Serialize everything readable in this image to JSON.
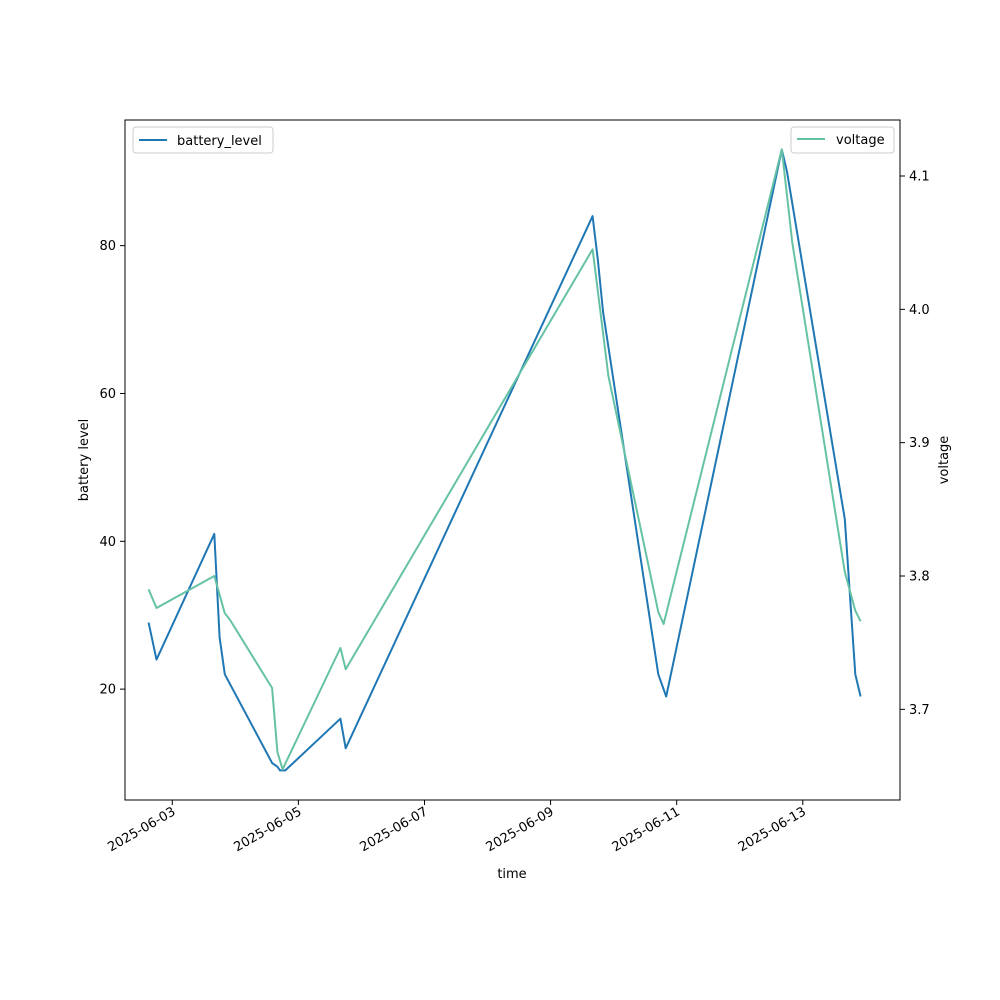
{
  "chart_data": {
    "type": "line",
    "xlabel": "time",
    "ylabel": "battery level",
    "y2label": "voltage",
    "xlim": [
      "2025-06-02 06:00",
      "2025-06-14 13:00"
    ],
    "ylim": [
      5,
      97
    ],
    "y2lim": [
      3.632,
      4.142
    ],
    "x_ticks": [
      "2025-06-03",
      "2025-06-05",
      "2025-06-07",
      "2025-06-09",
      "2025-06-11",
      "2025-06-13"
    ],
    "y_ticks": [
      20,
      40,
      60,
      80
    ],
    "y2_ticks": [
      3.7,
      3.8,
      3.9,
      4.0,
      4.1
    ],
    "y2_tick_labels": [
      "3.7",
      "3.8",
      "3.9",
      "4.0",
      "4.1"
    ],
    "grid": false,
    "series": [
      {
        "name": "battery_level",
        "axis": "left",
        "color": "#1f77b4",
        "legend": "upper-left",
        "points": [
          [
            "2025-06-02 15:00",
            29
          ],
          [
            "2025-06-02 18:00",
            24
          ],
          [
            "2025-06-03 16:00",
            41
          ],
          [
            "2025-06-03 18:00",
            27
          ],
          [
            "2025-06-03 20:00",
            22
          ],
          [
            "2025-06-04 14:00",
            10
          ],
          [
            "2025-06-04 16:00",
            9.5
          ],
          [
            "2025-06-04 17:00",
            9
          ],
          [
            "2025-06-04 19:00",
            9
          ],
          [
            "2025-06-05 16:00",
            16
          ],
          [
            "2025-06-05 18:00",
            12
          ],
          [
            "2025-06-09 16:00",
            84
          ],
          [
            "2025-06-09 18:00",
            78
          ],
          [
            "2025-06-09 20:00",
            71
          ],
          [
            "2025-06-10 17:00",
            22
          ],
          [
            "2025-06-10 20:00",
            19
          ],
          [
            "2025-06-12 16:00",
            93
          ],
          [
            "2025-06-12 18:00",
            90
          ],
          [
            "2025-06-13 16:00",
            43
          ],
          [
            "2025-06-13 20:00",
            22
          ],
          [
            "2025-06-13 22:00",
            19
          ]
        ]
      },
      {
        "name": "voltage",
        "axis": "right",
        "color": "#66c2a5",
        "legend": "upper-right",
        "points": [
          [
            "2025-06-02 15:00",
            3.79
          ],
          [
            "2025-06-02 18:00",
            3.776
          ],
          [
            "2025-06-03 16:00",
            3.8
          ],
          [
            "2025-06-03 20:00",
            3.772
          ],
          [
            "2025-06-03 22:00",
            3.767
          ],
          [
            "2025-06-04 14:00",
            3.716
          ],
          [
            "2025-06-04 16:00",
            3.668
          ],
          [
            "2025-06-04 18:00",
            3.655
          ],
          [
            "2025-06-05 16:00",
            3.746
          ],
          [
            "2025-06-05 18:00",
            3.73
          ],
          [
            "2025-06-09 16:00",
            4.045
          ],
          [
            "2025-06-09 22:00",
            3.95
          ],
          [
            "2025-06-10 17:00",
            3.773
          ],
          [
            "2025-06-10 19:00",
            3.764
          ],
          [
            "2025-06-12 16:00",
            4.12
          ],
          [
            "2025-06-12 20:00",
            4.05
          ],
          [
            "2025-06-13 16:00",
            3.803
          ],
          [
            "2025-06-13 20:00",
            3.774
          ],
          [
            "2025-06-13 22:00",
            3.766
          ]
        ]
      }
    ]
  }
}
